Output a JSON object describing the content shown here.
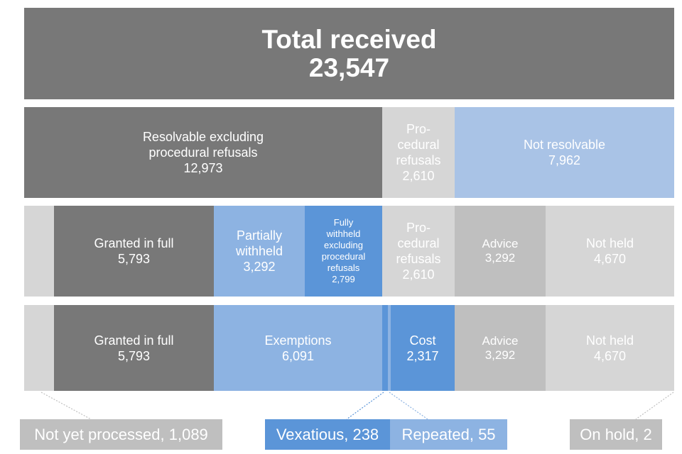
{
  "total": {
    "label": "Total received",
    "value": "23,547"
  },
  "row2": {
    "resolvable": {
      "line1": "Resolvable excluding",
      "line2": "procedural refusals",
      "value": "12,973"
    },
    "procedural": {
      "line1": "Pro-",
      "line2": "cedural",
      "line3": "refusals",
      "value": "2,610"
    },
    "not_resolvable": {
      "label": "Not resolvable",
      "value": "7,962"
    }
  },
  "row3": {
    "granted": {
      "label": "Granted in full",
      "value": "5,793"
    },
    "partially": {
      "line1": "Partially",
      "line2": "withheld",
      "value": "3,292"
    },
    "fully": {
      "line1": "Fully",
      "line2": "withheld",
      "line3": "excluding",
      "line4": "procedural",
      "line5": "refusals",
      "value": "2,799"
    },
    "procedural": {
      "line1": "Pro-",
      "line2": "cedural",
      "line3": "refusals",
      "value": "2,610"
    },
    "advice": {
      "label": "Advice",
      "value": "3,292"
    },
    "not_held": {
      "label": "Not held",
      "value": "4,670"
    }
  },
  "row4": {
    "granted": {
      "label": "Granted in full",
      "value": "5,793"
    },
    "exemptions": {
      "label": "Exemptions",
      "value": "6,091"
    },
    "cost": {
      "label": "Cost",
      "value": "2,317"
    },
    "advice": {
      "label": "Advice",
      "value": "3,292"
    },
    "not_held": {
      "label": "Not held",
      "value": "4,670"
    }
  },
  "callouts": {
    "not_yet_processed": "Not yet processed, 1,089",
    "vexatious": "Vexatious, 238",
    "repeated": "Repeated, 55",
    "on_hold": "On hold, 2"
  },
  "colors": {
    "dark_grey": "#787878",
    "light_grey": "#d6d6d6",
    "mid_grey": "#bfbfbf",
    "pale_blue": "#a9c3e6",
    "blue": "#8db3e2",
    "deep_blue": "#5b95d8"
  }
}
